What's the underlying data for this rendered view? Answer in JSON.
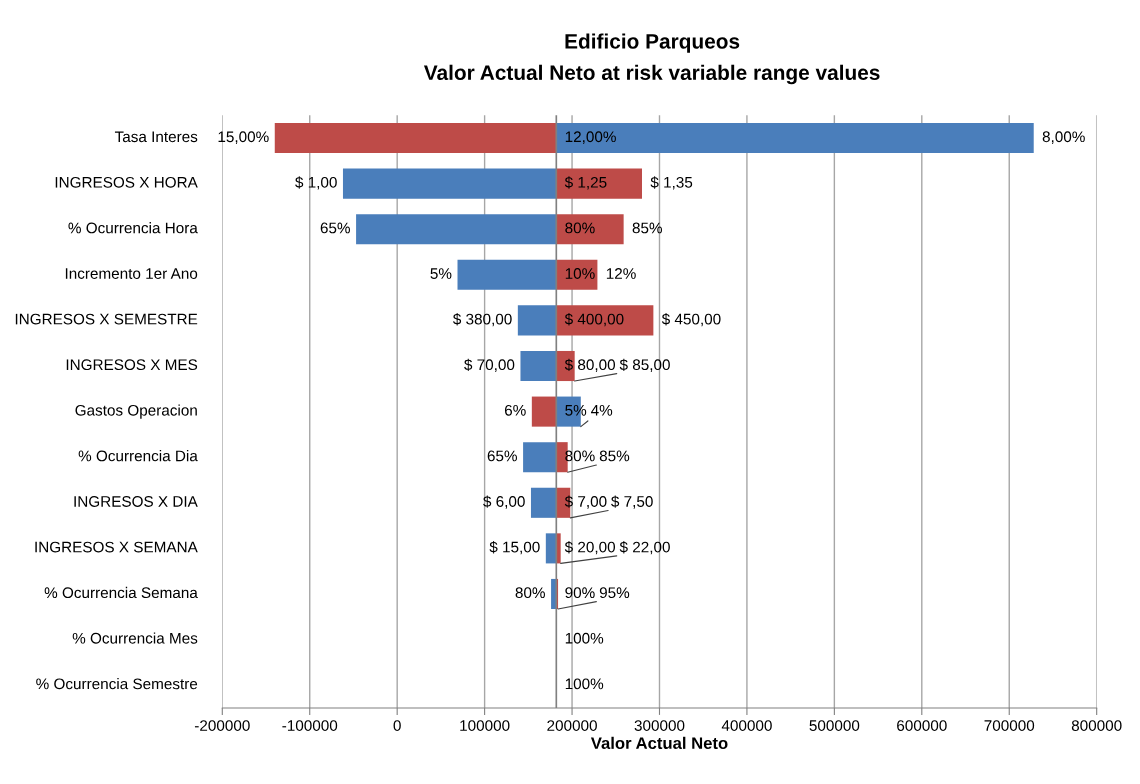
{
  "chart_data": {
    "type": "bar",
    "orientation": "horizontal",
    "title": "Edificio Parqueos",
    "subtitle": "Valor Actual Neto at risk variable range values",
    "xlabel": "Valor Actual Neto",
    "categories": [
      "Tasa Interes",
      "INGRESOS X HORA",
      "% Ocurrencia Hora",
      "Incremento 1er Ano",
      "INGRESOS X SEMESTRE",
      "INGRESOS X MES",
      "Gastos Operacion",
      "% Ocurrencia Dia",
      "INGRESOS X DIA",
      "INGRESOS X SEMANA",
      "% Ocurrencia Semana",
      "% Ocurrencia Mes",
      "% Ocurrencia Semestre"
    ],
    "series": [
      {
        "color": "#4a7ebb",
        "base": [
          182000,
          182000,
          182000,
          182000,
          182000,
          182000,
          182000,
          182000,
          182000,
          182000,
          182000,
          null,
          null
        ],
        "values": [
          546000,
          -244000,
          -229000,
          -113000,
          -44000,
          -41000,
          28000,
          -38000,
          -29000,
          -12000,
          -6000,
          null,
          null
        ]
      },
      {
        "color": "#be4b48",
        "base": [
          182000,
          182000,
          182000,
          182000,
          182000,
          182000,
          182000,
          182000,
          182000,
          182000,
          182000,
          null,
          null
        ],
        "values": [
          -322000,
          98000,
          77000,
          47000,
          111000,
          21000,
          -28000,
          13000,
          16000,
          5000,
          2000,
          null,
          null
        ]
      }
    ],
    "ref_lines": [
      {
        "axis": "x",
        "value": 182000,
        "color": "#808080"
      }
    ],
    "xlim": [
      -200000,
      800000
    ],
    "xticks": [
      -200000,
      -100000,
      0,
      100000,
      200000,
      300000,
      400000,
      500000,
      600000,
      700000,
      800000
    ],
    "grid": "x",
    "annotations": [
      {
        "text": "15,00%",
        "x": -140000,
        "y": "Tasa Interes"
      },
      {
        "text": "12,00%",
        "x": 182000,
        "y": "Tasa Interes"
      },
      {
        "text": "8,00%",
        "x": 728000,
        "y": "Tasa Interes"
      },
      {
        "text": "$ 1,00",
        "x": -62000,
        "y": "INGRESOS X HORA"
      },
      {
        "text": "$ 1,25",
        "x": 182000,
        "y": "INGRESOS X HORA"
      },
      {
        "text": "$ 1,35",
        "x": 280000,
        "y": "INGRESOS X HORA"
      },
      {
        "text": "65%",
        "x": -47000,
        "y": "% Ocurrencia Hora"
      },
      {
        "text": "80%",
        "x": 182000,
        "y": "% Ocurrencia Hora"
      },
      {
        "text": "85%",
        "x": 259000,
        "y": "% Ocurrencia Hora"
      },
      {
        "text": "5%",
        "x": 69000,
        "y": "Incremento 1er Ano"
      },
      {
        "text": "10%",
        "x": 182000,
        "y": "Incremento 1er Ano"
      },
      {
        "text": "12%",
        "x": 229000,
        "y": "Incremento 1er Ano"
      },
      {
        "text": "$ 380,00",
        "x": 138000,
        "y": "INGRESOS X SEMESTRE"
      },
      {
        "text": "$ 400,00",
        "x": 182000,
        "y": "INGRESOS X SEMESTRE"
      },
      {
        "text": "$ 450,00",
        "x": 293000,
        "y": "INGRESOS X SEMESTRE"
      },
      {
        "text": "$ 70,00",
        "x": 141000,
        "y": "INGRESOS X MES"
      },
      {
        "text": "$ 80,00",
        "x": 182000,
        "y": "INGRESOS X MES"
      },
      {
        "text": "$ 85,00",
        "x": 203000,
        "y": "INGRESOS X MES"
      },
      {
        "text": "6%",
        "x": 154000,
        "y": "Gastos Operacion"
      },
      {
        "text": "5%",
        "x": 182000,
        "y": "Gastos Operacion"
      },
      {
        "text": "4%",
        "x": 210000,
        "y": "Gastos Operacion"
      },
      {
        "text": "65%",
        "x": 144000,
        "y": "% Ocurrencia Dia"
      },
      {
        "text": "80%",
        "x": 182000,
        "y": "% Ocurrencia Dia"
      },
      {
        "text": "85%",
        "x": 195000,
        "y": "% Ocurrencia Dia"
      },
      {
        "text": "$ 6,00",
        "x": 153000,
        "y": "INGRESOS X DIA"
      },
      {
        "text": "$ 7,00",
        "x": 182000,
        "y": "INGRESOS X DIA"
      },
      {
        "text": "$ 7,50",
        "x": 198000,
        "y": "INGRESOS X DIA"
      },
      {
        "text": "$ 15,00",
        "x": 170000,
        "y": "INGRESOS X SEMANA"
      },
      {
        "text": "$ 20,00",
        "x": 182000,
        "y": "INGRESOS X SEMANA"
      },
      {
        "text": "$ 22,00",
        "x": 187000,
        "y": "INGRESOS X SEMANA"
      },
      {
        "text": "80%",
        "x": 176000,
        "y": "% Ocurrencia Semana"
      },
      {
        "text": "90%",
        "x": 182000,
        "y": "% Ocurrencia Semana"
      },
      {
        "text": "95%",
        "x": 184000,
        "y": "% Ocurrencia Semana"
      },
      {
        "text": "100%",
        "x": 182000,
        "y": "% Ocurrencia Mes"
      },
      {
        "text": "100%",
        "x": 182000,
        "y": "% Ocurrencia Semestre"
      }
    ]
  }
}
